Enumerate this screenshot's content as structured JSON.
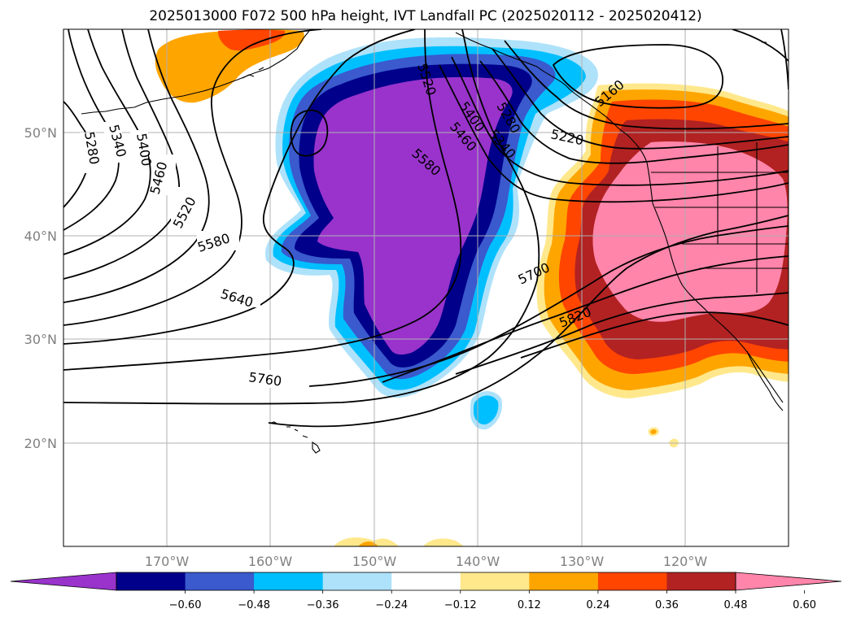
{
  "title": "2025013000 F072 500 hPa height, IVT Landfall PC (2025020112 - 2025020412)",
  "map": {
    "lat_labels": [
      "50°N",
      "40°N",
      "30°N",
      "20°N"
    ],
    "lon_labels": [
      "170°W",
      "160°W",
      "150°W",
      "140°W",
      "130°W",
      "120°W"
    ]
  },
  "chart_data": {
    "type": "heatmap",
    "title": "2025013000 F072 500 hPa height, IVT Landfall PC (2025020112 - 2025020412)",
    "shaded_field": "IVT Landfall PC",
    "contour_field": "500 hPa height",
    "contour_levels": [
      "5220",
      "5280",
      "5340",
      "5400",
      "5460",
      "5520",
      "5580",
      "5640",
      "5700",
      "5760",
      "5820"
    ],
    "contour_labels_shown": [
      "5280",
      "5340",
      "5400",
      "5460",
      "5520",
      "5580",
      "5640",
      "5760",
      "5520",
      "5400",
      "5460",
      "5580",
      "5280",
      "5340",
      "5220",
      "5160",
      "5700",
      "5820"
    ],
    "lat_range": [
      10,
      60
    ],
    "lon_range": [
      -180,
      -110
    ],
    "grid": true,
    "colorbar": {
      "placement": "bottom",
      "extend": "both",
      "ticks": [
        "−0.60",
        "−0.48",
        "−0.36",
        "−0.24",
        "−0.12",
        "0.12",
        "0.24",
        "0.36",
        "0.48",
        "0.60"
      ],
      "bins": [
        {
          "range": "< -0.60",
          "color": "#9933cc"
        },
        {
          "range": "-0.60 to -0.48",
          "color": "#00008b"
        },
        {
          "range": "-0.48 to -0.36",
          "color": "#3a5acd"
        },
        {
          "range": "-0.36 to -0.24",
          "color": "#00bfff"
        },
        {
          "range": "-0.24 to -0.12",
          "color": "#aee2fa"
        },
        {
          "range": "-0.12 to 0.12",
          "color": "#ffffff"
        },
        {
          "range": "0.12 to 0.24",
          "color": "#ffe88c"
        },
        {
          "range": "0.24 to 0.36",
          "color": "#ffa500"
        },
        {
          "range": "0.36 to 0.48",
          "color": "#ff4500"
        },
        {
          "range": "0.48 to 0.60",
          "color": "#b22222"
        },
        {
          "range": "> 0.60",
          "color": "#ff85aa"
        }
      ]
    }
  }
}
